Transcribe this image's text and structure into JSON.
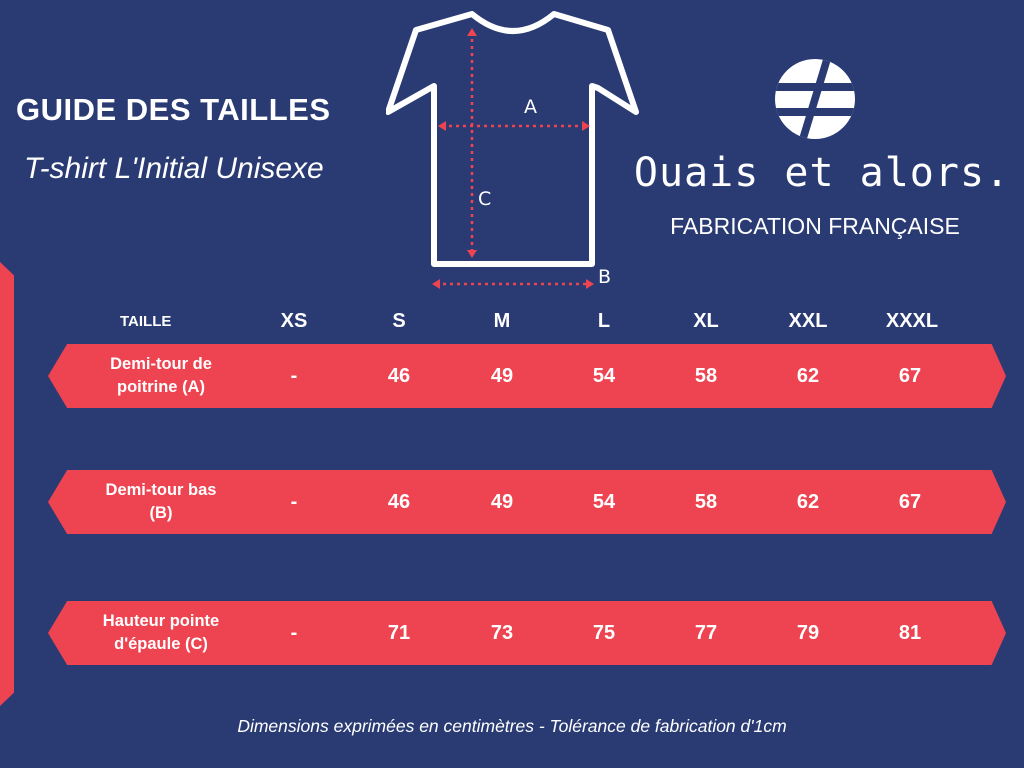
{
  "header": {
    "title": "GUIDE DES TAILLES",
    "subtitle": "T-shirt L'Initial Unisexe"
  },
  "diagram": {
    "label_a": "A",
    "label_b": "B",
    "label_c": "C"
  },
  "brand": {
    "name": "Ouais et alors.",
    "tagline": "FABRICATION FRANÇAISE"
  },
  "table": {
    "header_label": "TAILLE",
    "sizes": [
      "XS",
      "S",
      "M",
      "L",
      "XL",
      "XXL",
      "XXXL"
    ],
    "rows": [
      {
        "label": "Demi-tour de\npoitrine (A)",
        "values": [
          "-",
          "46",
          "49",
          "54",
          "58",
          "62",
          "67"
        ]
      },
      {
        "label": "Demi-tour bas\n(B)",
        "values": [
          "-",
          "46",
          "49",
          "54",
          "58",
          "62",
          "67"
        ]
      },
      {
        "label": "Hauteur pointe\nd'épaule (C)",
        "values": [
          "-",
          "71",
          "73",
          "75",
          "77",
          "79",
          "81"
        ]
      }
    ]
  },
  "footnote": "Dimensions exprimées en centimètres - Tolérance de fabrication d'1cm",
  "colors": {
    "background": "#2a3b74",
    "accent_red": "#ee4350",
    "text": "#ffffff"
  }
}
